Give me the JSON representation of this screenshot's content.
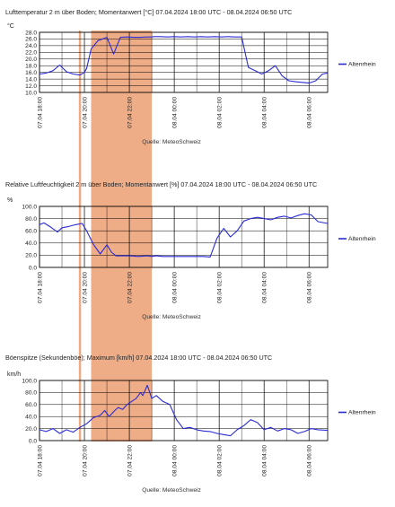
{
  "colors": {
    "series": "#2b2bd6",
    "highlight": "#eb9b6d",
    "grid": "#000000",
    "background": "#ffffff"
  },
  "source_label": "Quelle: MeteoSchweiz",
  "chart_data": [
    {
      "type": "line",
      "title": "Lufttemperatur 2 m über Boden; Momentanwert [°C]  07.04.2024 18:00 UTC - 08.04.2024 06:50 UTC",
      "ylabel": "°C",
      "ylim": [
        10,
        28
      ],
      "yticks": [
        "10.0",
        "12.0",
        "14.0",
        "16.0",
        "18.0",
        "20.0",
        "22.0",
        "24.0",
        "26.0",
        "28.0"
      ],
      "xticks": [
        "07.04 18:00",
        "07.04 20:00",
        "07.04 22:00",
        "08.04 00:00",
        "08.04 02:00",
        "08.04 04:00",
        "08.04 06:00"
      ],
      "grid": true,
      "legend_position": "right",
      "highlight_hours": [
        [
          1.75,
          1.85
        ],
        [
          2.3,
          5.0
        ]
      ],
      "series": [
        {
          "name": "Altenrhein",
          "x": [
            0,
            0.3,
            0.6,
            0.9,
            1.2,
            1.5,
            1.8,
            2.0,
            2.1,
            2.3,
            2.6,
            3.0,
            3.3,
            3.6,
            3.9,
            4.2,
            4.5,
            4.8,
            5.0,
            5.1,
            5.4,
            5.7,
            6.0,
            6.3,
            6.6,
            6.9,
            7.2,
            7.5,
            7.8,
            8.1,
            8.4,
            8.7,
            9.0,
            9.3,
            9.6,
            9.9,
            10.2,
            10.5,
            10.8,
            11.1,
            11.4,
            11.7,
            12.0,
            12.3,
            12.6,
            12.83
          ],
          "y": [
            15.5,
            15.8,
            16.5,
            18.2,
            16.2,
            15.5,
            15.2,
            16.0,
            17.2,
            23.0,
            25.5,
            26.5,
            21.5,
            26.5,
            26.6,
            26.5,
            26.5,
            26.6,
            26.6,
            26.7,
            26.7,
            26.6,
            26.7,
            26.6,
            26.7,
            26.6,
            26.7,
            26.6,
            26.7,
            26.6,
            26.7,
            26.6,
            26.6,
            17.5,
            16.5,
            15.5,
            16.5,
            18.0,
            15.0,
            13.5,
            13.2,
            13.0,
            12.8,
            13.5,
            15.5,
            15.8
          ],
          "_note": ""
        }
      ]
    },
    {
      "type": "line",
      "title": "Relative Luftfeuchtigkeit 2 m über Boden; Momentanwert [%]  07.04.2024 18:00 UTC - 08.04.2024 06:50 UTC",
      "ylabel": "%",
      "ylim": [
        0,
        100
      ],
      "yticks": [
        "0.0",
        "20.0",
        "40.0",
        "60.0",
        "80.0",
        "100.0"
      ],
      "xticks": [
        "07.04 18:00",
        "07.04 20:00",
        "07.04 22:00",
        "08.04 00:00",
        "08.04 02:00",
        "08.04 04:00",
        "08.04 06:00"
      ],
      "grid": true,
      "legend_position": "right",
      "highlight_hours": [
        [
          1.75,
          1.85
        ],
        [
          2.3,
          5.0
        ]
      ],
      "series": [
        {
          "name": "Altenrhein",
          "x": [
            0,
            0.2,
            0.5,
            0.8,
            1.0,
            1.3,
            1.6,
            1.9,
            2.1,
            2.4,
            2.7,
            3.0,
            3.2,
            3.4,
            3.6,
            4.0,
            4.4,
            4.8,
            5.0,
            5.2,
            5.5,
            5.8,
            6.1,
            6.4,
            6.7,
            7.0,
            7.3,
            7.6,
            7.9,
            8.2,
            8.5,
            8.8,
            9.1,
            9.4,
            9.7,
            10.0,
            10.3,
            10.6,
            10.9,
            11.2,
            11.5,
            11.8,
            12.1,
            12.4,
            12.83
          ],
          "y": [
            70,
            73,
            66,
            58,
            65,
            67,
            70,
            72,
            60,
            38,
            22,
            37,
            25,
            19,
            19,
            19,
            18,
            19,
            18,
            19,
            18,
            18,
            18,
            18,
            18,
            18,
            18,
            17,
            48,
            64,
            50,
            60,
            76,
            80,
            82,
            80,
            78,
            82,
            84,
            81,
            85,
            88,
            86,
            75,
            72
          ],
          "_note": ""
        }
      ]
    },
    {
      "type": "line",
      "title": "Böenspitze (Sekundenböe); Maximum [km/h]  07.04.2024 18:00 UTC - 08.04.2024 06:50 UTC",
      "ylabel": "km/h",
      "ylim": [
        0,
        100
      ],
      "yticks": [
        "0.0",
        "20.0",
        "40.0",
        "60.0",
        "80.0",
        "100.0"
      ],
      "xticks": [
        "07.04 18:00",
        "07.04 20:00",
        "07.04 22:00",
        "08.04 00:00",
        "08.04 02:00",
        "08.04 04:00",
        "08.04 06:00"
      ],
      "grid": true,
      "legend_position": "right",
      "highlight_hours": [
        [
          1.75,
          1.85
        ],
        [
          2.3,
          5.0
        ]
      ],
      "series": [
        {
          "name": "Altenrhein",
          "x": [
            0,
            0.3,
            0.6,
            0.9,
            1.2,
            1.5,
            1.8,
            2.1,
            2.4,
            2.7,
            2.9,
            3.1,
            3.3,
            3.5,
            3.7,
            3.9,
            4.1,
            4.3,
            4.5,
            4.6,
            4.8,
            5.0,
            5.2,
            5.5,
            5.8,
            6.1,
            6.4,
            6.7,
            7.0,
            7.3,
            7.6,
            7.9,
            8.2,
            8.5,
            8.8,
            9.1,
            9.4,
            9.7,
            10.0,
            10.3,
            10.6,
            10.9,
            11.2,
            11.5,
            11.8,
            12.1,
            12.4,
            12.83
          ],
          "y": [
            18,
            15,
            20,
            12,
            18,
            14,
            22,
            28,
            38,
            42,
            50,
            40,
            48,
            55,
            52,
            60,
            65,
            70,
            80,
            75,
            92,
            70,
            75,
            65,
            60,
            35,
            20,
            22,
            18,
            16,
            15,
            12,
            10,
            8,
            18,
            25,
            35,
            30,
            18,
            22,
            16,
            20,
            18,
            12,
            15,
            20,
            18,
            17
          ],
          "_note": ""
        }
      ]
    }
  ]
}
